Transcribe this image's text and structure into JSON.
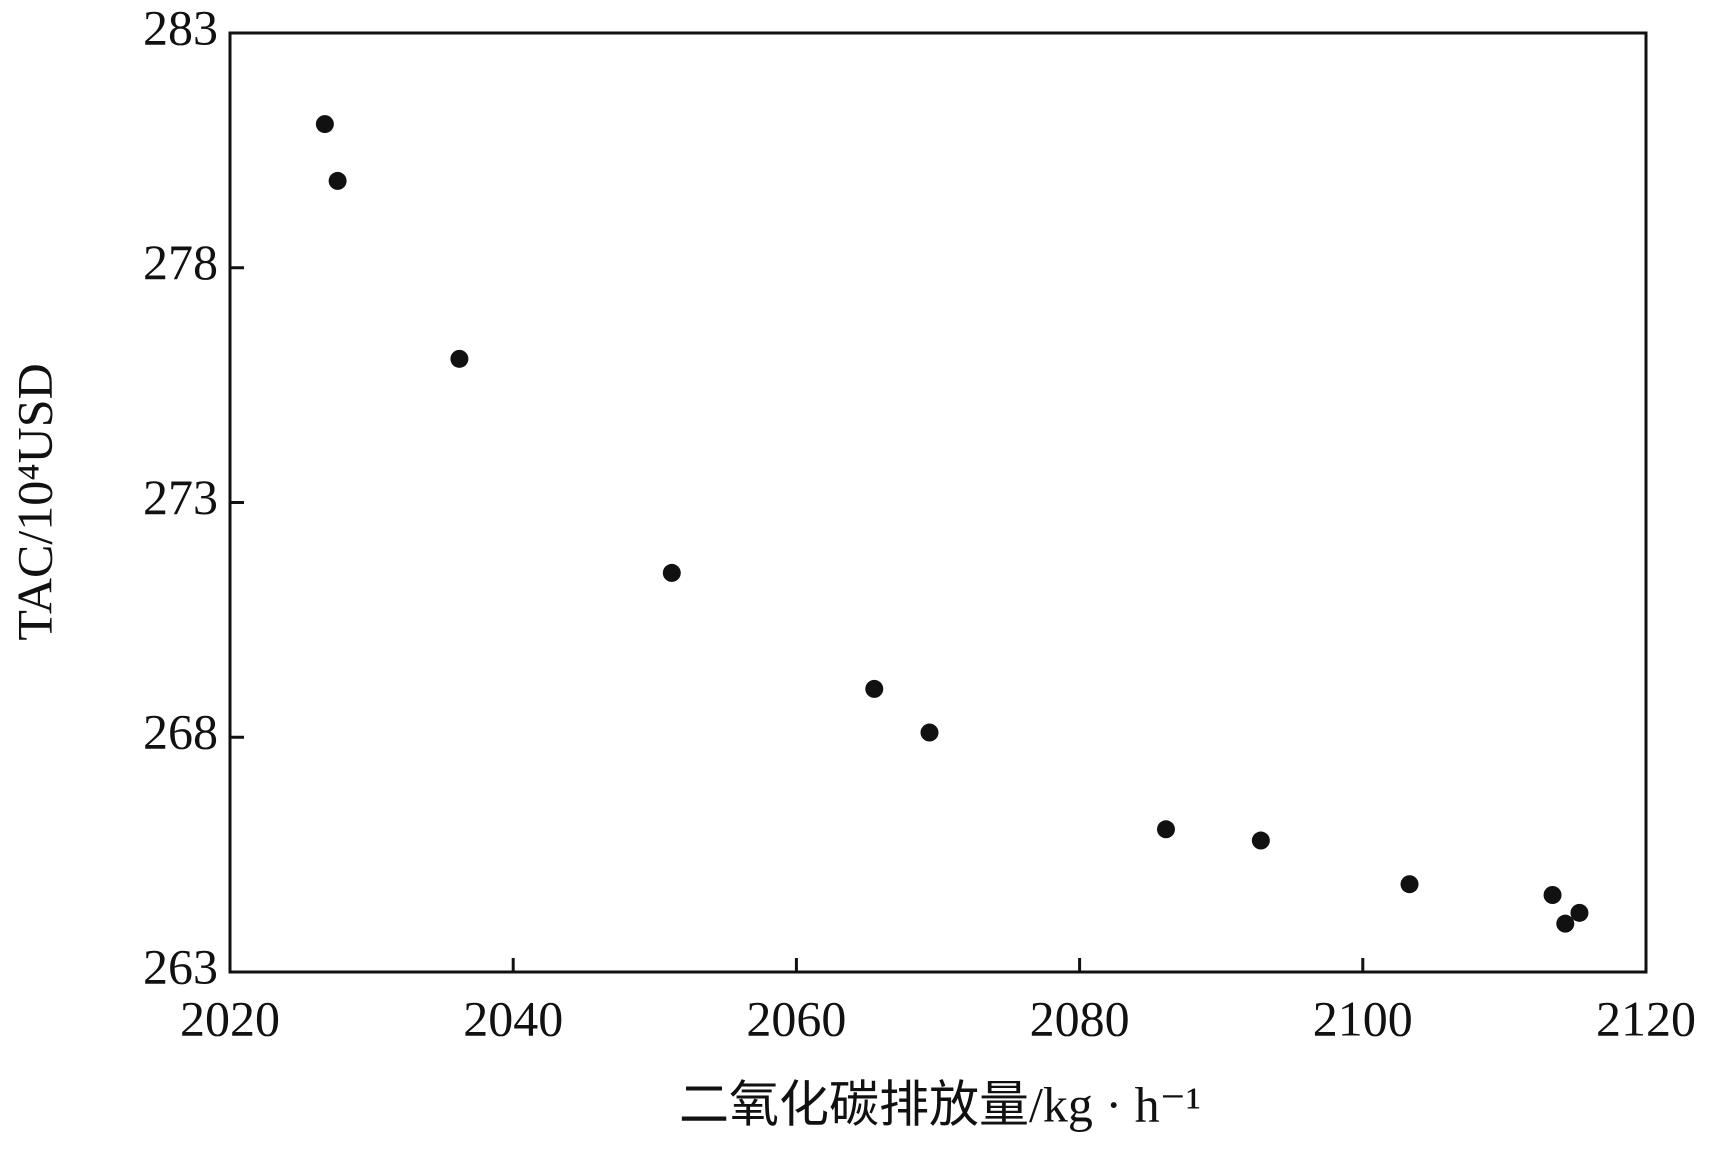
{
  "chart_data": {
    "type": "scatter",
    "x_label": "二氧化碳排放量/kg · h⁻¹",
    "y_label": "TAC/10⁴USD",
    "x": [
      2026.7,
      2027.6,
      2036.2,
      2051.2,
      2065.5,
      2069.4,
      2086.1,
      2092.8,
      2103.3,
      2113.4,
      2114.3,
      2115.3
    ],
    "values": [
      281.06,
      279.85,
      276.06,
      271.5,
      269.03,
      268.1,
      266.04,
      265.8,
      264.87,
      264.64,
      264.03,
      264.26
    ],
    "color": "#111111",
    "xlim": [
      2020,
      2120
    ],
    "xticks": [
      2020,
      2040,
      2060,
      2080,
      2100,
      2120
    ],
    "ylim": [
      263,
      283
    ],
    "yticks": [
      263,
      268,
      273,
      278,
      283
    ]
  }
}
